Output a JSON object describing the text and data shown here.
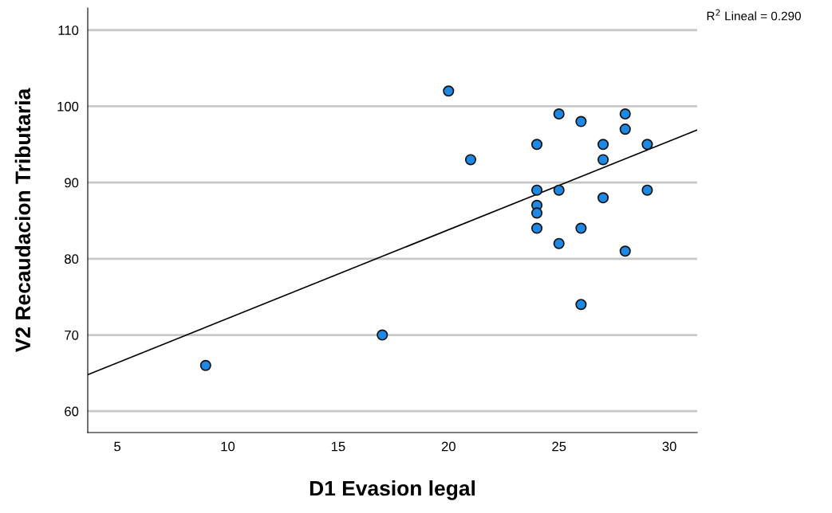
{
  "chart_data": {
    "type": "scatter",
    "xlabel": "D1 Evasion legal",
    "ylabel": "V2 Recaudacion Tributaria",
    "annotations": [
      "R$^{2}$ Lineal = 0.290"
    ],
    "xlim": [
      3.66,
      31.26
    ],
    "ylim": [
      57.2,
      112.9
    ],
    "xticks": [
      5,
      10,
      15,
      20,
      25,
      30
    ],
    "yticks": [
      60,
      70,
      80,
      90,
      100,
      110
    ],
    "grid": "y",
    "legend": false,
    "series": [
      {
        "marker": "circle",
        "color": "#1e88e5",
        "x": [
          9,
          17,
          20,
          21,
          24,
          24,
          24,
          24,
          24,
          25,
          25,
          25,
          26,
          26,
          26,
          27,
          27,
          27,
          28,
          28,
          28,
          29,
          29
        ],
        "values": [
          66,
          70,
          102,
          93,
          95,
          89,
          87,
          86,
          84,
          99,
          89,
          82,
          98,
          84,
          74,
          95,
          93,
          88,
          99,
          97,
          81,
          95,
          89
        ]
      },
      {
        "type": "line",
        "marker": "none",
        "color": "#000000",
        "line_style": "solid",
        "x": [
          3.66,
          31.26
        ],
        "values": [
          64.8,
          96.9
        ]
      }
    ]
  }
}
